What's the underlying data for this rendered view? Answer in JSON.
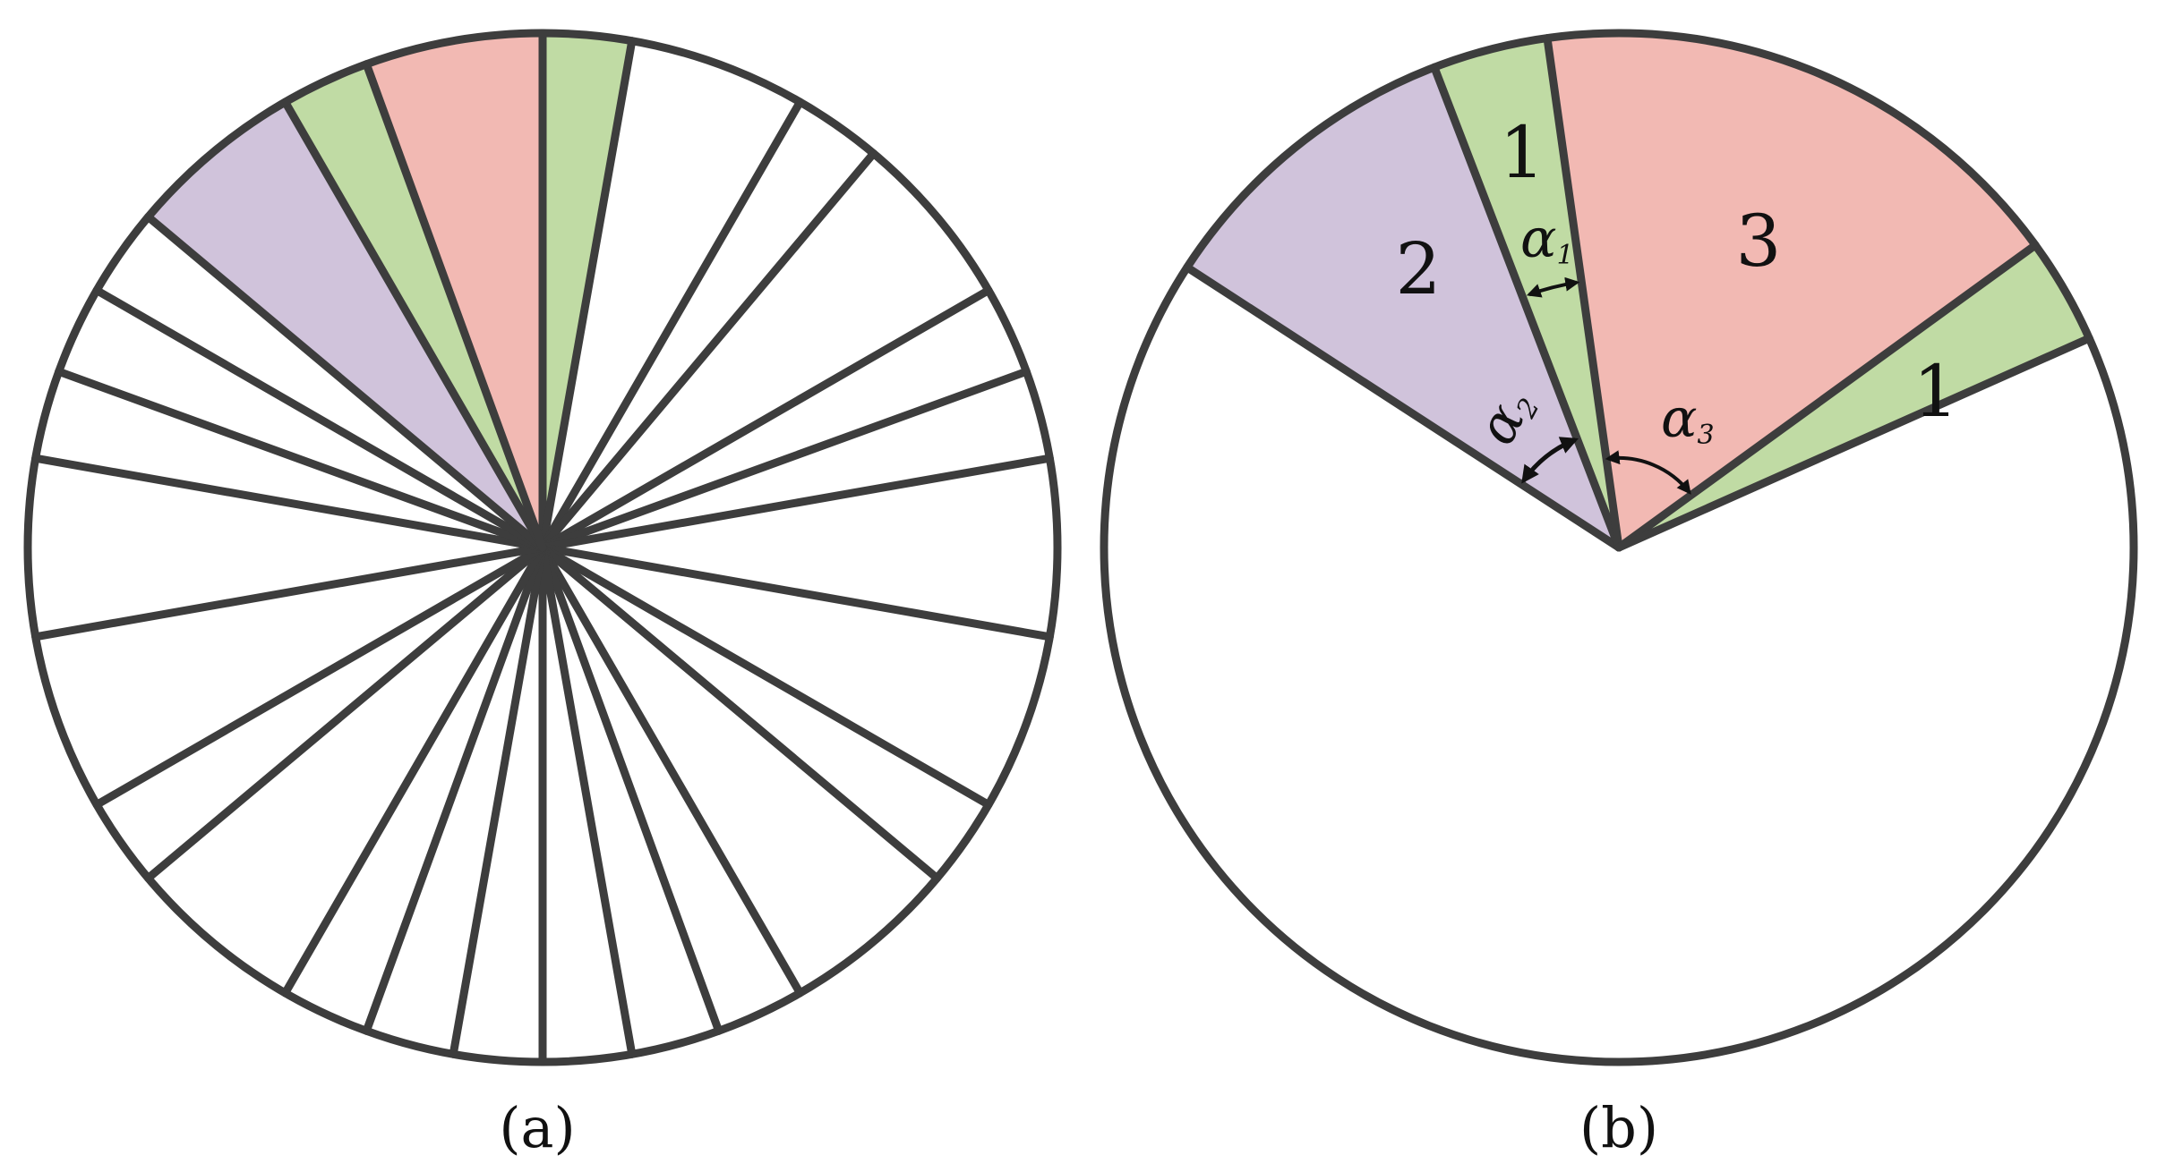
{
  "colors": {
    "outline": "#3d3d3d",
    "green": "#c0dba4",
    "pink": "#f2b9b3",
    "purple": "#d0c3db",
    "background": "#ffffff",
    "arrow": "#111111"
  },
  "panel_a": {
    "caption": "(a)",
    "spokes": 24,
    "highlighted": [
      {
        "sector": "green",
        "color_key": "green"
      },
      {
        "sector": "pink",
        "color_key": "pink"
      },
      {
        "sector": "green",
        "color_key": "green"
      },
      {
        "sector": "purple",
        "color_key": "purple"
      }
    ]
  },
  "panel_b": {
    "caption": "(b)",
    "region_labels": {
      "green_upper": "1",
      "purple": "2",
      "pink": "3",
      "green_right": "1"
    },
    "angles": [
      {
        "base": "α",
        "sub": "1"
      },
      {
        "base": "α",
        "sub": "2"
      },
      {
        "base": "α",
        "sub": "3"
      }
    ]
  }
}
